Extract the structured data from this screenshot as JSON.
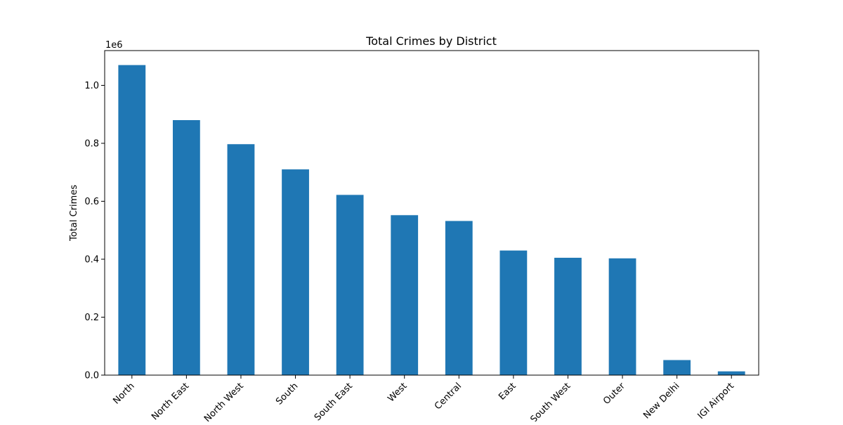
{
  "chart_data": {
    "type": "bar",
    "title": "Total Crimes by District",
    "xlabel": "",
    "ylabel": "Total Crimes",
    "scale_label": "1e6",
    "categories": [
      "North",
      "North East",
      "North West",
      "South",
      "South East",
      "West",
      "Central",
      "East",
      "South West",
      "Outer",
      "New Delhi",
      "IGI Airport"
    ],
    "values": [
      1070000,
      880000,
      797000,
      710000,
      622000,
      552000,
      532000,
      430000,
      405000,
      403000,
      52000,
      13000
    ],
    "ylim": [
      0,
      1120000
    ],
    "yticks": [
      0,
      200000,
      400000,
      600000,
      800000,
      1000000
    ],
    "ytick_labels": [
      "0.0",
      "0.2",
      "0.4",
      "0.6",
      "0.8",
      "1.0"
    ],
    "bar_color": "#1f77b4",
    "grid": false,
    "legend": "none"
  }
}
